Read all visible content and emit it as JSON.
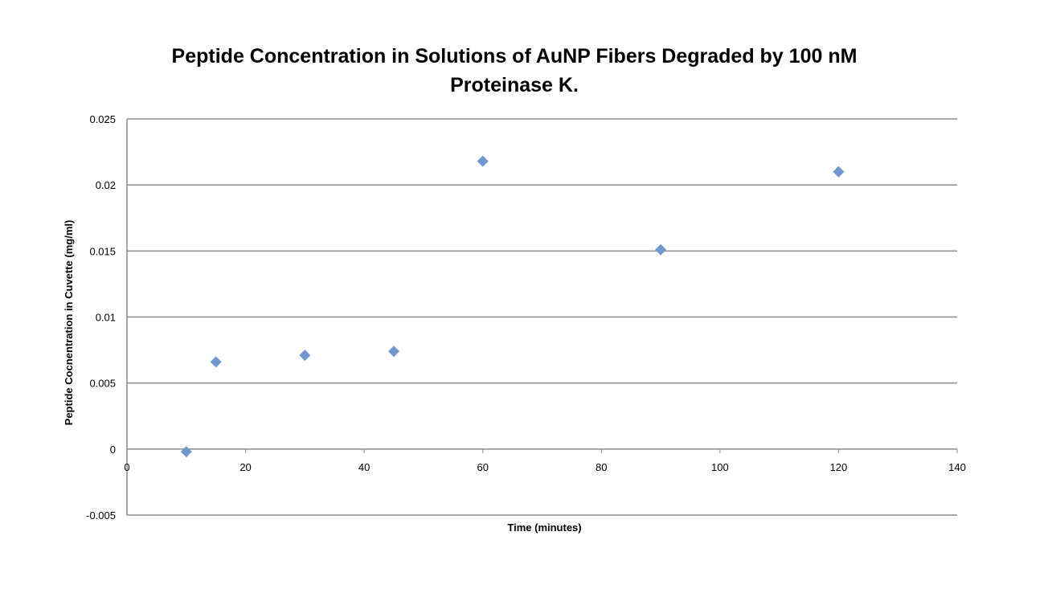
{
  "chart_data": {
    "type": "scatter",
    "title": "Peptide Concentration in Solutions of AuNP Fibers Degraded by 100 nM Proteinase K.",
    "title_lines": [
      "Peptide Concentration in Solutions of AuNP Fibers Degraded by 100 nM",
      "Proteinase K."
    ],
    "xlabel": "Time (minutes)",
    "ylabel": "Peptide Cocnentration in Cuvette (mg/ml)",
    "xlim": [
      0,
      140
    ],
    "ylim": [
      -0.005,
      0.025
    ],
    "x_ticks": [
      "0",
      "20",
      "40",
      "60",
      "80",
      "100",
      "120",
      "140"
    ],
    "y_ticks": [
      "0.025",
      "0.02",
      "0.015",
      "0.01",
      "0.005",
      "0",
      "-0.005"
    ],
    "grid": "horizontal",
    "legend": "none",
    "marker": "diamond",
    "color": "#6f97d2",
    "series": [
      {
        "x": [
          10,
          15,
          30,
          45,
          60,
          90,
          120
        ],
        "y": [
          -0.0002,
          0.0066,
          0.0071,
          0.0074,
          0.0218,
          0.0151,
          0.021
        ]
      }
    ]
  }
}
